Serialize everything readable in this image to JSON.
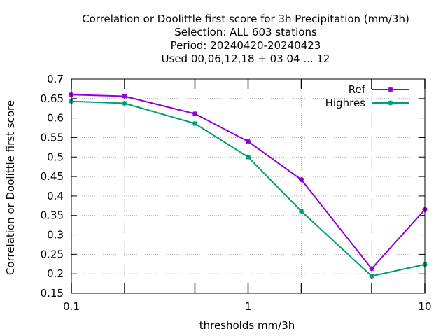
{
  "chart_data": {
    "type": "line",
    "title_lines": [
      "Correlation or Doolittle first score  for 3h Precipitation (mm/3h)",
      "Selection: ALL    603 stations",
      "Period: 20240420-20240423",
      "Used  00,06,12,18 + 03 04 ... 12"
    ],
    "xlabel": "thresholds mm/3h",
    "ylabel": "Correlation or Doolittle first score",
    "x_scale": "log",
    "xlim": [
      0.1,
      10
    ],
    "ylim": [
      0.15,
      0.7
    ],
    "x_ticks": [
      0.1,
      1,
      10
    ],
    "x_tick_labels": [
      "0.1",
      "1",
      "10"
    ],
    "x_minor_ticks": [
      0.2,
      0.5,
      2,
      5
    ],
    "y_ticks": [
      0.15,
      0.2,
      0.25,
      0.3,
      0.35,
      0.4,
      0.45,
      0.5,
      0.55,
      0.6,
      0.65,
      0.7
    ],
    "y_tick_labels": [
      "0.15",
      "0.2",
      "0.25",
      "0.3",
      "0.35",
      "0.4",
      "0.45",
      "0.5",
      "0.55",
      "0.6",
      "0.65",
      "0.7"
    ],
    "grid": true,
    "legend_position": "top-right",
    "x": [
      0.1,
      0.2,
      0.5,
      1,
      2,
      5,
      10
    ],
    "series": [
      {
        "name": "Ref",
        "color": "#9400d3",
        "values": [
          0.66,
          0.656,
          0.611,
          0.54,
          0.442,
          0.213,
          0.365
        ]
      },
      {
        "name": "Highres",
        "color": "#009e73",
        "values": [
          0.643,
          0.638,
          0.586,
          0.5,
          0.361,
          0.194,
          0.224
        ]
      }
    ]
  }
}
